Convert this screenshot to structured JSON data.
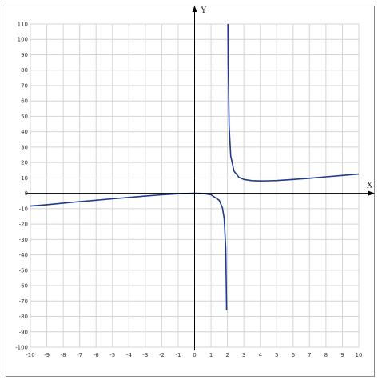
{
  "chart_data": {
    "type": "line",
    "title": "",
    "xlabel": "X",
    "ylabel": "Y",
    "xlim": [
      -10,
      10
    ],
    "ylim": [
      -100,
      110
    ],
    "x_ticks": [
      -10,
      -9,
      -8,
      -7,
      -6,
      -5,
      -4,
      -3,
      -2,
      -1,
      0,
      1,
      2,
      3,
      4,
      5,
      6,
      7,
      8,
      9,
      10
    ],
    "y_ticks": [
      -100,
      -90,
      -80,
      -70,
      -60,
      -50,
      -40,
      -30,
      -20,
      -10,
      0,
      10,
      20,
      30,
      40,
      50,
      60,
      70,
      80,
      90,
      100,
      110
    ],
    "grid": true,
    "series": [
      {
        "x": [
          -10,
          -9,
          -8,
          -7,
          -6,
          -5,
          -4,
          -3,
          -2,
          -1.5,
          -1,
          -0.5,
          0,
          0.5,
          1,
          1.5,
          1.7,
          1.8,
          1.9,
          1.95
        ],
        "y": [
          -8.3,
          -7.4,
          -6.4,
          -5.4,
          -4.5,
          -3.6,
          -2.7,
          -1.8,
          -1,
          -0.6,
          -0.3,
          -0.1,
          0,
          -0.1,
          -1,
          -4.5,
          -9.6,
          -16.2,
          -36.1,
          -76
        ]
      },
      {
        "x": [
          2.035,
          2.05,
          2.1,
          2.2,
          2.4,
          2.7,
          3,
          3.5,
          4,
          4.5,
          5,
          6,
          7,
          8,
          9,
          10
        ],
        "y": [
          110,
          84,
          44,
          24.2,
          14.4,
          10.4,
          9,
          8.2,
          8,
          8.1,
          8.3,
          9,
          9.8,
          10.7,
          11.6,
          12.5
        ]
      }
    ],
    "colors": {
      "curve": "#1f3b8c",
      "grid": "#d4d4d4",
      "axis": "#000000",
      "border": "#8a8a8a"
    }
  }
}
